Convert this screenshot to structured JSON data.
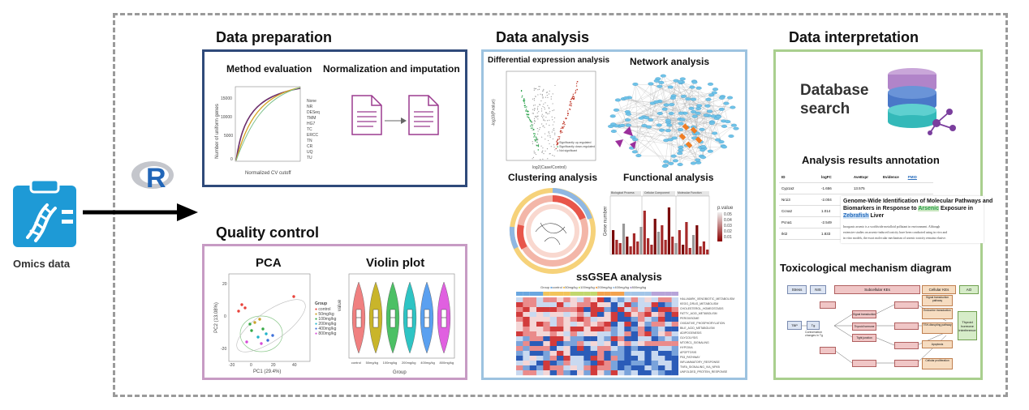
{
  "omics": {
    "label": "Omics data"
  },
  "r_logo": {
    "letter": "R"
  },
  "sections": {
    "data_preparation": {
      "title": "Data preparation",
      "method_evaluation": {
        "title": "Method evaluation",
        "ylabel": "Number of uniform genes",
        "xlabel": "Normalized CV cutoff",
        "yticks": [
          "15000",
          "10000",
          "5000",
          "0"
        ],
        "xticks": [
          "0.0",
          "0.2",
          "0.4",
          "0.6",
          "0.8",
          "1.0"
        ],
        "legend": [
          "None",
          "NR",
          "DESeq",
          "TMM",
          "HG7",
          "TC",
          "ERCC",
          "TN",
          "CR",
          "UQ",
          "TU"
        ]
      },
      "normalization": {
        "title": "Normalization and imputation"
      }
    },
    "quality_control": {
      "title": "Quality control",
      "pca": {
        "title": "PCA",
        "xlabel": "PC1 (29.4%)",
        "ylabel": "PC2 (13.08%)",
        "xticks": [
          "-20",
          "0",
          "20",
          "40"
        ],
        "yticks": [
          "20",
          "0",
          "-20"
        ],
        "legend_title": "Group",
        "legend": [
          "control",
          "50mg/kg",
          "100mg/kg",
          "200mg/kg",
          "400mg/kg",
          "800mg/kg"
        ]
      },
      "violin": {
        "title": "Violin plot",
        "xlabel": "Group",
        "ylabel": "value",
        "groups": [
          "control",
          "50mg/kg",
          "100mg/kg",
          "200mg/kg",
          "400mg/kg",
          "800mg/kg"
        ]
      }
    },
    "data_analysis": {
      "title": "Data analysis",
      "differential": {
        "title": "Differential expression analysis",
        "xlabel": "log2(Case/Control)",
        "ylabel": "-log10(P.value)",
        "legend": [
          "Significantly up-regulated",
          "Significantly down-regulated",
          "Not significant"
        ]
      },
      "network": {
        "title": "Network analysis"
      },
      "clustering": {
        "title": "Clustering analysis"
      },
      "functional": {
        "title": "Functional analysis",
        "facets": [
          "Biological Process",
          "Cellular Component",
          "Molecular Function"
        ],
        "ylabel": "Gene number",
        "legend_title": "p.value",
        "legend_ticks": [
          "0.05",
          "0.04",
          "0.03",
          "0.02",
          "0.01"
        ]
      },
      "ssgsea": {
        "title": "ssGSEA analysis",
        "legend": "Group",
        "groups": [
          "control",
          "50mg/kg",
          "100mg/kg",
          "200mg/kg",
          "400mg/kg",
          "800mg/kg"
        ],
        "pathways": [
          "HALLMARK_XENOBIOTIC_METABOLISM",
          "KEGG_DRUG_METABOLISM",
          "CHOLESTEROL_HOMEOSTASIS",
          "FATTY_ACID_METABOLISM",
          "PEROXISOME",
          "OXIDATIVE_PHOSPHORYLATION",
          "BILE_ACID_METABOLISM",
          "ADIPOGENESIS",
          "GLYCOLYSIS",
          "MTORC1_SIGNALING",
          "HYPOXIA",
          "APOPTOSIS",
          "P53_PATHWAY",
          "INFLAMMATORY_RESPONSE",
          "TNFA_SIGNALING_VIA_NFKB",
          "UNFOLDED_PROTEIN_RESPONSE"
        ]
      }
    },
    "data_interpretation": {
      "title": "Data interpretation",
      "database_search": {
        "line1": "Database",
        "line2": "search"
      },
      "annotation": {
        "title": "Analysis results annotation",
        "headers": [
          "ID",
          "logFC",
          "AveExpr",
          "Evidence",
          "PMID"
        ],
        "rows": [
          [
            "Cyp1a2",
            "-1.656",
            "13.575",
            "",
            ""
          ],
          [
            "Nr1i3",
            "-2.004",
            "5.646",
            "?",
            "23202514"
          ],
          [
            "Ccna2",
            "1.014",
            "",
            "",
            ""
          ],
          [
            "Pcna1",
            "-2.549",
            "",
            "",
            ""
          ],
          [
            "Ikt2",
            "1.833",
            "",
            "",
            ""
          ]
        ],
        "paper_title_1": "Genome-Wide Identification of Molecular Pathways and",
        "paper_title_2a": "Biomarkers in Response to ",
        "paper_title_2b": "Arsenic",
        "paper_title_2c": " Exposure in",
        "paper_title_3a": "Zebrafish",
        "paper_title_3b": " Liver",
        "abstract": [
          "Inorganic arsenic is a worldwide metalloid pollutant in environment. Although",
          "extensive studies on arsenic-induced toxicity have been conducted using in vivo and",
          "in vitro models, the exact molecular mechanism of arsenic toxicity remains elusive."
        ]
      },
      "toxicological": {
        "title": "Toxicological mechanism diagram",
        "header_labels": [
          "Stress",
          "NIS",
          "Subcellular KEs",
          "Cellular KEs",
          "AO"
        ],
        "left_nodes": [
          "TBP",
          "Tg"
        ],
        "left_note": "Conformation changes in Tg",
        "outcome": "Thyroid hormone interference",
        "mid_labels": [
          "Signal transduction",
          "Thyroid hormone",
          "Tight junction"
        ],
        "right_labels": [
          "Signal transduction pathway",
          "Endocrine transduction",
          "TSH-disrupting pathway",
          "Apoptosis",
          "Cellular proliferation"
        ]
      }
    }
  },
  "colors": {
    "dp_border": "#2f4a7a",
    "qc_border": "#c79bc4",
    "da_border": "#9dc3e0",
    "di_border": "#a9cf8e",
    "icon_blue": "#1e9ad6"
  }
}
